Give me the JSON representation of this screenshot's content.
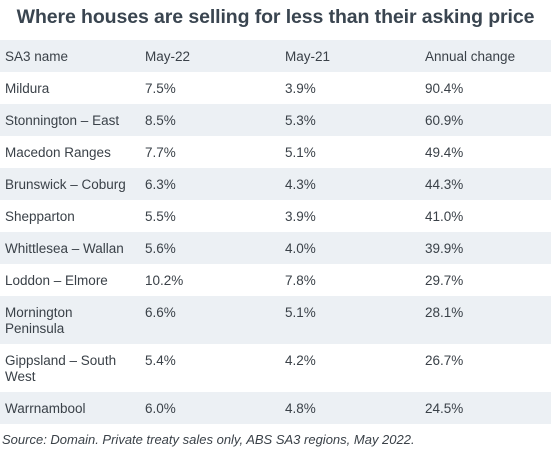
{
  "title": "Where houses are selling for less than their asking price",
  "columns": [
    "SA3 name",
    "May-22",
    "May-21",
    "Annual change"
  ],
  "rows": [
    [
      "Mildura",
      "7.5%",
      "3.9%",
      "90.4%"
    ],
    [
      "Stonnington – East",
      "8.5%",
      "5.3%",
      "60.9%"
    ],
    [
      "Macedon Ranges",
      "7.7%",
      "5.1%",
      "49.4%"
    ],
    [
      "Brunswick – Coburg",
      "6.3%",
      "4.3%",
      "44.3%"
    ],
    [
      "Shepparton",
      "5.5%",
      "3.9%",
      "41.0%"
    ],
    [
      "Whittlesea – Wallan",
      "5.6%",
      "4.0%",
      "39.9%"
    ],
    [
      "Loddon – Elmore",
      "10.2%",
      "7.8%",
      "29.7%"
    ],
    [
      "Mornington Peninsula",
      "6.6%",
      "5.1%",
      "28.1%"
    ],
    [
      "Gippsland – South West",
      "5.4%",
      "4.2%",
      "26.7%"
    ],
    [
      "Warrnambool",
      "6.0%",
      "4.8%",
      "24.5%"
    ]
  ],
  "source": "Source: Domain. Private treaty sales only, ABS SA3 regions, May 2022.",
  "colors": {
    "row_shade": "#ecf0f4",
    "title": "#3a4550",
    "text": "#3a4148"
  }
}
